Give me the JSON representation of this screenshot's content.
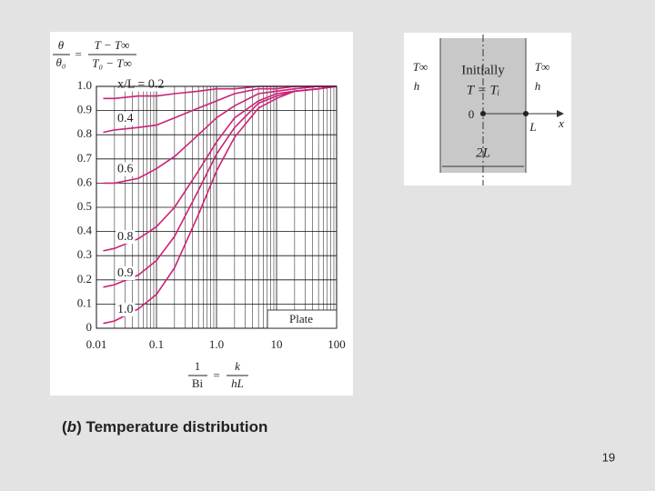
{
  "chart_data": {
    "type": "line",
    "ylabel": {
      "lhs_num": "θ",
      "lhs_den": "θ₀",
      "eq": "=",
      "rhs_num": "T − T∞",
      "rhs_den": "T₀ − T∞"
    },
    "xlabel": {
      "lhs_num": "1",
      "lhs_den": "Bi",
      "eq": "=",
      "rhs_num": "k",
      "rhs_den": "hL"
    },
    "annotation": "Plate",
    "log_x": true,
    "grid": true,
    "minor_grid": true,
    "xlim": [
      0.01,
      100
    ],
    "xticks": [
      0.01,
      0.1,
      {
        "value": 1,
        "label": "1.0"
      },
      10,
      100
    ],
    "ylim": [
      0,
      1
    ],
    "yticks": [
      0,
      0.1,
      0.2,
      0.3,
      0.4,
      0.5,
      0.6,
      0.7,
      0.8,
      0.9,
      {
        "value": 1,
        "label": "1.0"
      }
    ],
    "x": [
      0.013,
      0.02,
      0.05,
      0.1,
      0.2,
      0.5,
      1,
      2,
      5,
      10,
      20,
      50,
      100
    ],
    "series": [
      {
        "name": "x/L = 0.2",
        "color": "#cc2277",
        "values": [
          0.95,
          0.95,
          0.96,
          0.96,
          0.97,
          0.98,
          0.99,
          0.99,
          1.0,
          1.0,
          1.0,
          1.0,
          1.0
        ]
      },
      {
        "name": "0.4",
        "color": "#cc2277",
        "values": [
          0.81,
          0.82,
          0.83,
          0.84,
          0.87,
          0.91,
          0.94,
          0.97,
          0.99,
          0.99,
          1.0,
          1.0,
          1.0
        ]
      },
      {
        "name": "0.6",
        "color": "#cc2277",
        "values": [
          0.6,
          0.6,
          0.62,
          0.66,
          0.71,
          0.8,
          0.87,
          0.92,
          0.97,
          0.98,
          0.99,
          1.0,
          1.0
        ]
      },
      {
        "name": "0.8",
        "color": "#cc2277",
        "values": [
          0.32,
          0.33,
          0.37,
          0.42,
          0.5,
          0.65,
          0.77,
          0.87,
          0.94,
          0.97,
          0.98,
          0.99,
          1.0
        ]
      },
      {
        "name": "0.9",
        "color": "#cc2277",
        "values": [
          0.17,
          0.18,
          0.22,
          0.28,
          0.38,
          0.57,
          0.72,
          0.83,
          0.93,
          0.96,
          0.98,
          0.99,
          1.0
        ]
      },
      {
        "name": "1.0",
        "color": "#cc2277",
        "values": [
          0.02,
          0.03,
          0.08,
          0.14,
          0.25,
          0.47,
          0.65,
          0.79,
          0.91,
          0.95,
          0.98,
          0.99,
          1.0
        ]
      }
    ]
  },
  "diagram": {
    "t_inf_left": "T∞",
    "h_left": "h",
    "t_inf_right": "T∞",
    "h_right": "h",
    "initially": "Initially",
    "initial_condition": "T = Tᵢ",
    "origin": "0",
    "length": "L",
    "axis": "x",
    "width": "2L"
  },
  "caption": [
    "(",
    "b",
    ") Temperature distribution"
  ],
  "page_number": "19"
}
